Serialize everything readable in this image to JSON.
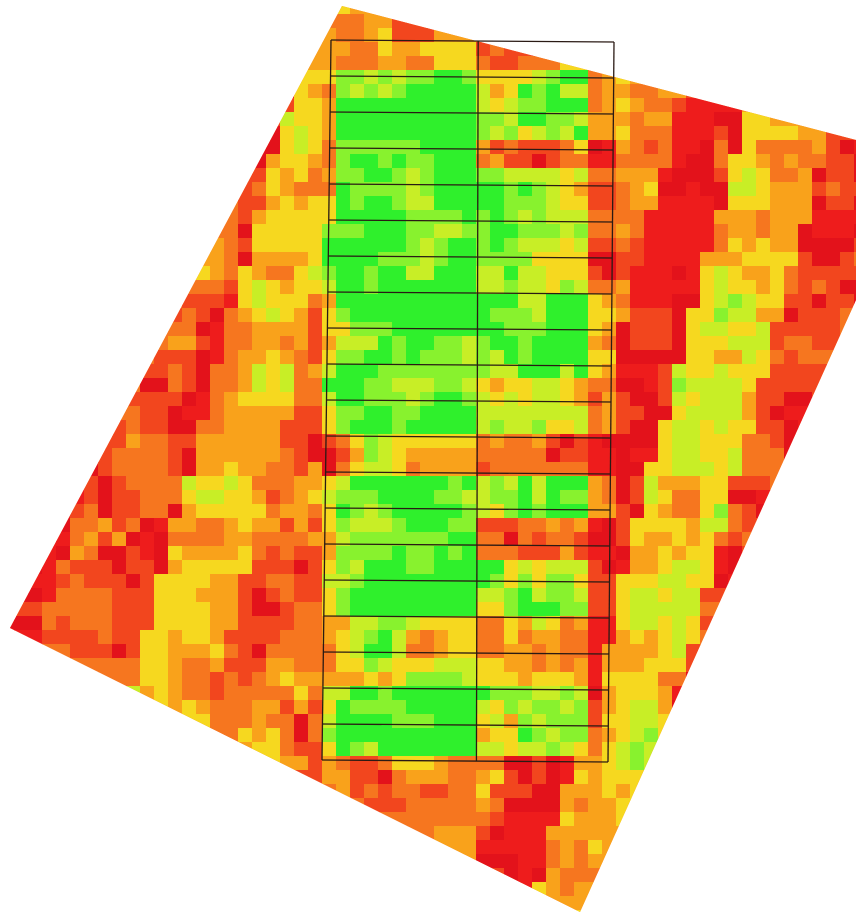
{
  "map": {
    "type": "field-heatmap",
    "palette": {
      "red": "#ee1c1c",
      "dark_red": "#e3121b",
      "orange_red": "#f2461e",
      "orange": "#f6761f",
      "amber": "#f9a21b",
      "yellow": "#f6d81f",
      "yellow_green": "#c8ee26",
      "light_green": "#88f22e",
      "green": "#2ff02c"
    },
    "background": "#ffffff",
    "grid_line_color": "#2a1a14",
    "plot_grid": {
      "columns": 2,
      "rows": 20
    }
  }
}
